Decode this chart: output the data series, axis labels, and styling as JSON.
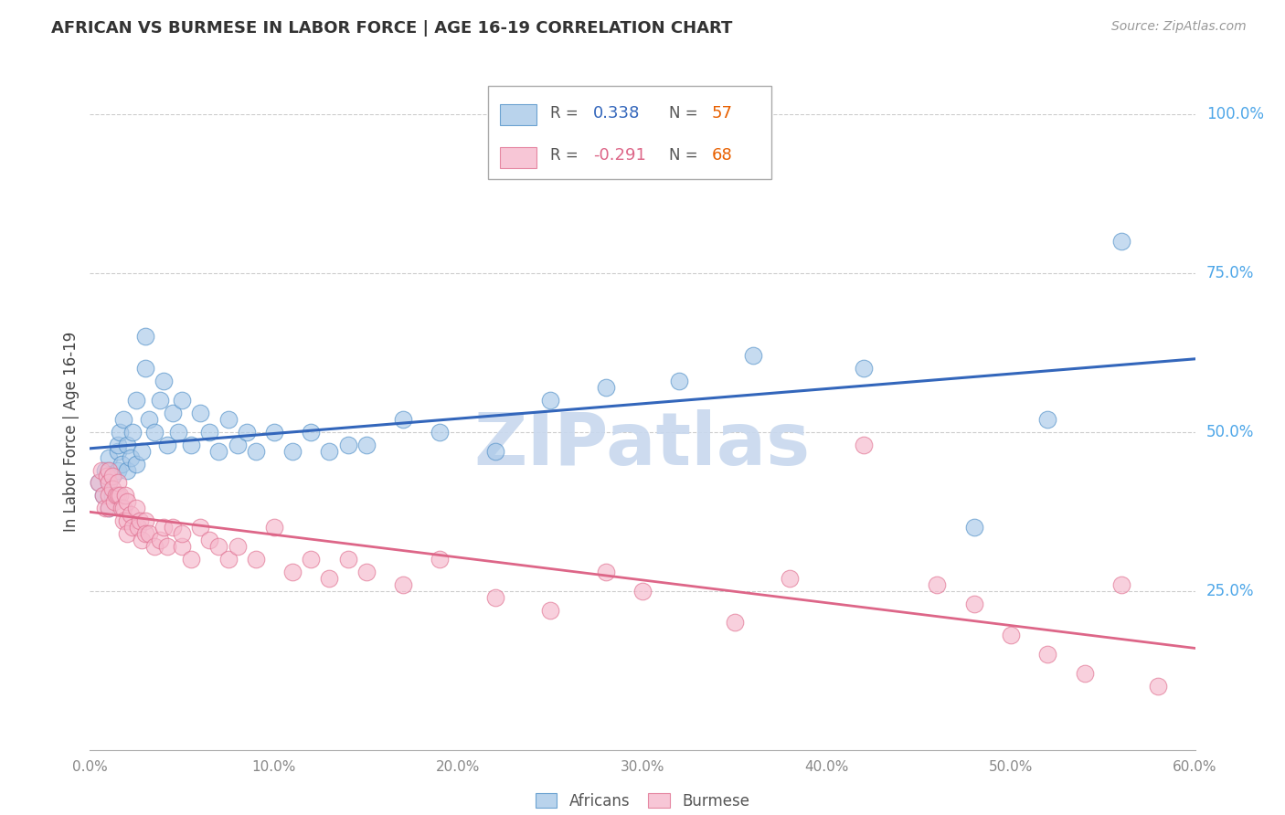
{
  "title": "AFRICAN VS BURMESE IN LABOR FORCE | AGE 16-19 CORRELATION CHART",
  "source": "Source: ZipAtlas.com",
  "ylabel": "In Labor Force | Age 16-19",
  "xlabel_ticks": [
    "0.0%",
    "10.0%",
    "20.0%",
    "30.0%",
    "40.0%",
    "50.0%",
    "60.0%"
  ],
  "xlabel_vals": [
    0.0,
    0.1,
    0.2,
    0.3,
    0.4,
    0.5,
    0.6
  ],
  "ylabel_ticks_right": [
    "100.0%",
    "75.0%",
    "50.0%",
    "25.0%"
  ],
  "ylabel_vals_right": [
    1.0,
    0.75,
    0.5,
    0.25
  ],
  "xlim": [
    0.0,
    0.6
  ],
  "ylim": [
    0.0,
    1.0
  ],
  "african_R": 0.338,
  "african_N": 57,
  "burmese_R": -0.291,
  "burmese_N": 68,
  "african_color": "#a8c8e8",
  "african_edge_color": "#5090c8",
  "african_line_color": "#3366bb",
  "burmese_color": "#f5b8cc",
  "burmese_edge_color": "#e07090",
  "burmese_line_color": "#dd6688",
  "legend_label_african": "Africans",
  "legend_label_burmese": "Burmese",
  "background_color": "#ffffff",
  "grid_color": "#cccccc",
  "watermark_text": "ZIPatlas",
  "watermark_color": "#c8d8ee",
  "title_color": "#333333",
  "source_color": "#999999",
  "tick_color_x": "#888888",
  "tick_color_right": "#4da6e8",
  "r_color_african": "#3366bb",
  "n_color": "#e86000",
  "r_color_burmese": "#dd6688",
  "african_x": [
    0.005,
    0.007,
    0.008,
    0.01,
    0.01,
    0.01,
    0.01,
    0.012,
    0.012,
    0.015,
    0.015,
    0.015,
    0.016,
    0.017,
    0.018,
    0.02,
    0.02,
    0.022,
    0.023,
    0.025,
    0.025,
    0.028,
    0.03,
    0.03,
    0.032,
    0.035,
    0.038,
    0.04,
    0.042,
    0.045,
    0.048,
    0.05,
    0.055,
    0.06,
    0.065,
    0.07,
    0.075,
    0.08,
    0.085,
    0.09,
    0.1,
    0.11,
    0.12,
    0.13,
    0.14,
    0.15,
    0.17,
    0.19,
    0.22,
    0.25,
    0.28,
    0.32,
    0.36,
    0.42,
    0.48,
    0.52,
    0.56
  ],
  "african_y": [
    0.42,
    0.4,
    0.44,
    0.38,
    0.42,
    0.44,
    0.46,
    0.4,
    0.43,
    0.44,
    0.47,
    0.48,
    0.5,
    0.45,
    0.52,
    0.44,
    0.48,
    0.46,
    0.5,
    0.45,
    0.55,
    0.47,
    0.6,
    0.65,
    0.52,
    0.5,
    0.55,
    0.58,
    0.48,
    0.53,
    0.5,
    0.55,
    0.48,
    0.53,
    0.5,
    0.47,
    0.52,
    0.48,
    0.5,
    0.47,
    0.5,
    0.47,
    0.5,
    0.47,
    0.48,
    0.48,
    0.52,
    0.5,
    0.47,
    0.55,
    0.57,
    0.58,
    0.62,
    0.6,
    0.35,
    0.52,
    0.8
  ],
  "burmese_x": [
    0.005,
    0.006,
    0.007,
    0.008,
    0.009,
    0.01,
    0.01,
    0.01,
    0.01,
    0.012,
    0.012,
    0.013,
    0.014,
    0.015,
    0.015,
    0.016,
    0.017,
    0.018,
    0.018,
    0.019,
    0.02,
    0.02,
    0.02,
    0.022,
    0.023,
    0.025,
    0.026,
    0.027,
    0.028,
    0.03,
    0.03,
    0.032,
    0.035,
    0.038,
    0.04,
    0.042,
    0.045,
    0.05,
    0.05,
    0.055,
    0.06,
    0.065,
    0.07,
    0.075,
    0.08,
    0.09,
    0.1,
    0.11,
    0.12,
    0.13,
    0.14,
    0.15,
    0.17,
    0.19,
    0.22,
    0.25,
    0.28,
    0.3,
    0.35,
    0.38,
    0.42,
    0.46,
    0.48,
    0.5,
    0.52,
    0.54,
    0.56,
    0.58
  ],
  "burmese_y": [
    0.42,
    0.44,
    0.4,
    0.38,
    0.43,
    0.44,
    0.42,
    0.4,
    0.38,
    0.43,
    0.41,
    0.39,
    0.4,
    0.4,
    0.42,
    0.4,
    0.38,
    0.38,
    0.36,
    0.4,
    0.39,
    0.36,
    0.34,
    0.37,
    0.35,
    0.38,
    0.35,
    0.36,
    0.33,
    0.36,
    0.34,
    0.34,
    0.32,
    0.33,
    0.35,
    0.32,
    0.35,
    0.32,
    0.34,
    0.3,
    0.35,
    0.33,
    0.32,
    0.3,
    0.32,
    0.3,
    0.35,
    0.28,
    0.3,
    0.27,
    0.3,
    0.28,
    0.26,
    0.3,
    0.24,
    0.22,
    0.28,
    0.25,
    0.2,
    0.27,
    0.48,
    0.26,
    0.23,
    0.18,
    0.15,
    0.12,
    0.26,
    0.1
  ]
}
